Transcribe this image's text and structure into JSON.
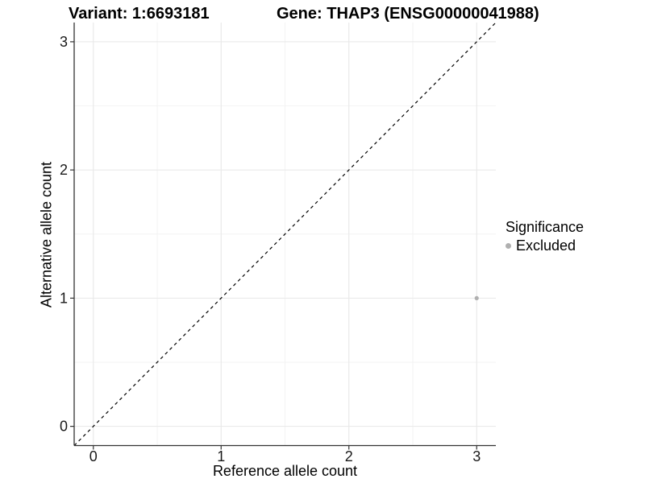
{
  "figure": {
    "title_left": "Variant: 1:6693181",
    "title_right": "Gene: THAP3 (ENSG00000041988)"
  },
  "chart_data": {
    "type": "scatter",
    "title": "Variant: 1:6693181   Gene: THAP3 (ENSG00000041988)",
    "xlabel": "Reference allele count",
    "ylabel": "Alternative allele count",
    "xlim": [
      -0.15,
      3.15
    ],
    "ylim": [
      -0.15,
      3.15
    ],
    "x_ticks": [
      0,
      1,
      2,
      3
    ],
    "y_ticks": [
      0,
      1,
      2,
      3
    ],
    "x_minor_ticks": [
      0.5,
      1.5,
      2.5
    ],
    "y_minor_ticks": [
      0.5,
      1.5,
      2.5
    ],
    "grid": "major and minor, light gray, white background",
    "reference_line": {
      "kind": "identity y=x",
      "from": [
        -0.15,
        -0.15
      ],
      "to": [
        3.15,
        3.15
      ],
      "style": "dashed",
      "color": "#000000"
    },
    "series": [
      {
        "name": "Excluded",
        "color": "#b0b0b0",
        "points": [
          [
            3,
            1
          ]
        ]
      }
    ],
    "legend": {
      "title": "Significance",
      "position": "right",
      "entries": [
        {
          "label": "Excluded",
          "color": "#b0b0b0"
        }
      ]
    }
  },
  "style": {
    "background": "#ffffff",
    "axis_line_color": "#333333",
    "tick_color": "#333333",
    "grid_major_color": "#e8e8e8",
    "grid_minor_color": "#f3f3f3",
    "text_color": "#1a1a1a",
    "point_radius": 2.6,
    "ref_line_width": 1.2,
    "ref_dash": "4 4"
  }
}
